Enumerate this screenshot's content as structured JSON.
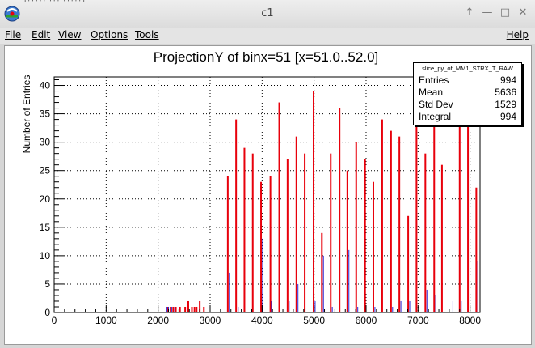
{
  "window": {
    "title": "c1",
    "topstrip": "[?????  ???  ?????]"
  },
  "menu": {
    "file": "File",
    "edit": "Edit",
    "view": "View",
    "options": "Options",
    "tools": "Tools",
    "help": "Help"
  },
  "stats": {
    "name": "slice_py_of_MM1_STRX_T_RAW",
    "rows": [
      {
        "label": "Entries",
        "value": "994"
      },
      {
        "label": "Mean",
        "value": "5636"
      },
      {
        "label": "Std Dev",
        "value": "1529"
      },
      {
        "label": "Integral",
        "value": "994"
      }
    ]
  },
  "chart_data": {
    "type": "bar",
    "title": "ProjectionY of binx=51 [x=51.0..52.0]",
    "xlabel": "",
    "ylabel": "Number of Entries",
    "xlim": [
      0,
      8192
    ],
    "ylim": [
      0,
      41.5
    ],
    "xticks": [
      0,
      1000,
      2000,
      3000,
      4000,
      5000,
      6000,
      7000,
      8000
    ],
    "yticks": [
      0,
      5,
      10,
      15,
      20,
      25,
      30,
      35,
      40
    ],
    "grid": true,
    "colors": {
      "red": "#e8000b",
      "blue": "#2a2ad8"
    },
    "red_bars": [
      {
        "x": 2190,
        "y": 1
      },
      {
        "x": 2240,
        "y": 1
      },
      {
        "x": 2290,
        "y": 1
      },
      {
        "x": 2340,
        "y": 1
      },
      {
        "x": 2420,
        "y": 1
      },
      {
        "x": 2520,
        "y": 1
      },
      {
        "x": 2580,
        "y": 2
      },
      {
        "x": 2650,
        "y": 1
      },
      {
        "x": 2700,
        "y": 1
      },
      {
        "x": 2740,
        "y": 1
      },
      {
        "x": 2800,
        "y": 2
      },
      {
        "x": 2880,
        "y": 1
      },
      {
        "x": 3340,
        "y": 24
      },
      {
        "x": 3500,
        "y": 34
      },
      {
        "x": 3660,
        "y": 29
      },
      {
        "x": 3820,
        "y": 28
      },
      {
        "x": 3980,
        "y": 23
      },
      {
        "x": 4160,
        "y": 24
      },
      {
        "x": 4330,
        "y": 37
      },
      {
        "x": 4490,
        "y": 27
      },
      {
        "x": 4660,
        "y": 31
      },
      {
        "x": 4820,
        "y": 28
      },
      {
        "x": 4990,
        "y": 39
      },
      {
        "x": 5150,
        "y": 14
      },
      {
        "x": 5320,
        "y": 28
      },
      {
        "x": 5490,
        "y": 36
      },
      {
        "x": 5640,
        "y": 25
      },
      {
        "x": 5810,
        "y": 30
      },
      {
        "x": 5980,
        "y": 27
      },
      {
        "x": 6140,
        "y": 23
      },
      {
        "x": 6310,
        "y": 34
      },
      {
        "x": 6480,
        "y": 32
      },
      {
        "x": 6640,
        "y": 31
      },
      {
        "x": 6810,
        "y": 17
      },
      {
        "x": 6970,
        "y": 37
      },
      {
        "x": 7140,
        "y": 28
      },
      {
        "x": 7310,
        "y": 38
      },
      {
        "x": 7460,
        "y": 26
      },
      {
        "x": 7800,
        "y": 35
      },
      {
        "x": 7960,
        "y": 41
      },
      {
        "x": 8120,
        "y": 22
      }
    ],
    "blue_bars": [
      {
        "x": 2170,
        "y": 1
      },
      {
        "x": 2200,
        "y": 1
      },
      {
        "x": 2260,
        "y": 1
      },
      {
        "x": 2320,
        "y": 1
      },
      {
        "x": 3370,
        "y": 7
      },
      {
        "x": 3540,
        "y": 1
      },
      {
        "x": 4010,
        "y": 13
      },
      {
        "x": 4180,
        "y": 2
      },
      {
        "x": 4520,
        "y": 2
      },
      {
        "x": 4690,
        "y": 5
      },
      {
        "x": 5020,
        "y": 2
      },
      {
        "x": 5180,
        "y": 10
      },
      {
        "x": 5350,
        "y": 1
      },
      {
        "x": 5670,
        "y": 11
      },
      {
        "x": 5840,
        "y": 1
      },
      {
        "x": 6170,
        "y": 1
      },
      {
        "x": 6510,
        "y": 1
      },
      {
        "x": 6670,
        "y": 2
      },
      {
        "x": 6840,
        "y": 2
      },
      {
        "x": 7170,
        "y": 4
      },
      {
        "x": 7340,
        "y": 3
      },
      {
        "x": 7670,
        "y": 2
      },
      {
        "x": 7830,
        "y": 2
      },
      {
        "x": 8150,
        "y": 9
      }
    ]
  }
}
